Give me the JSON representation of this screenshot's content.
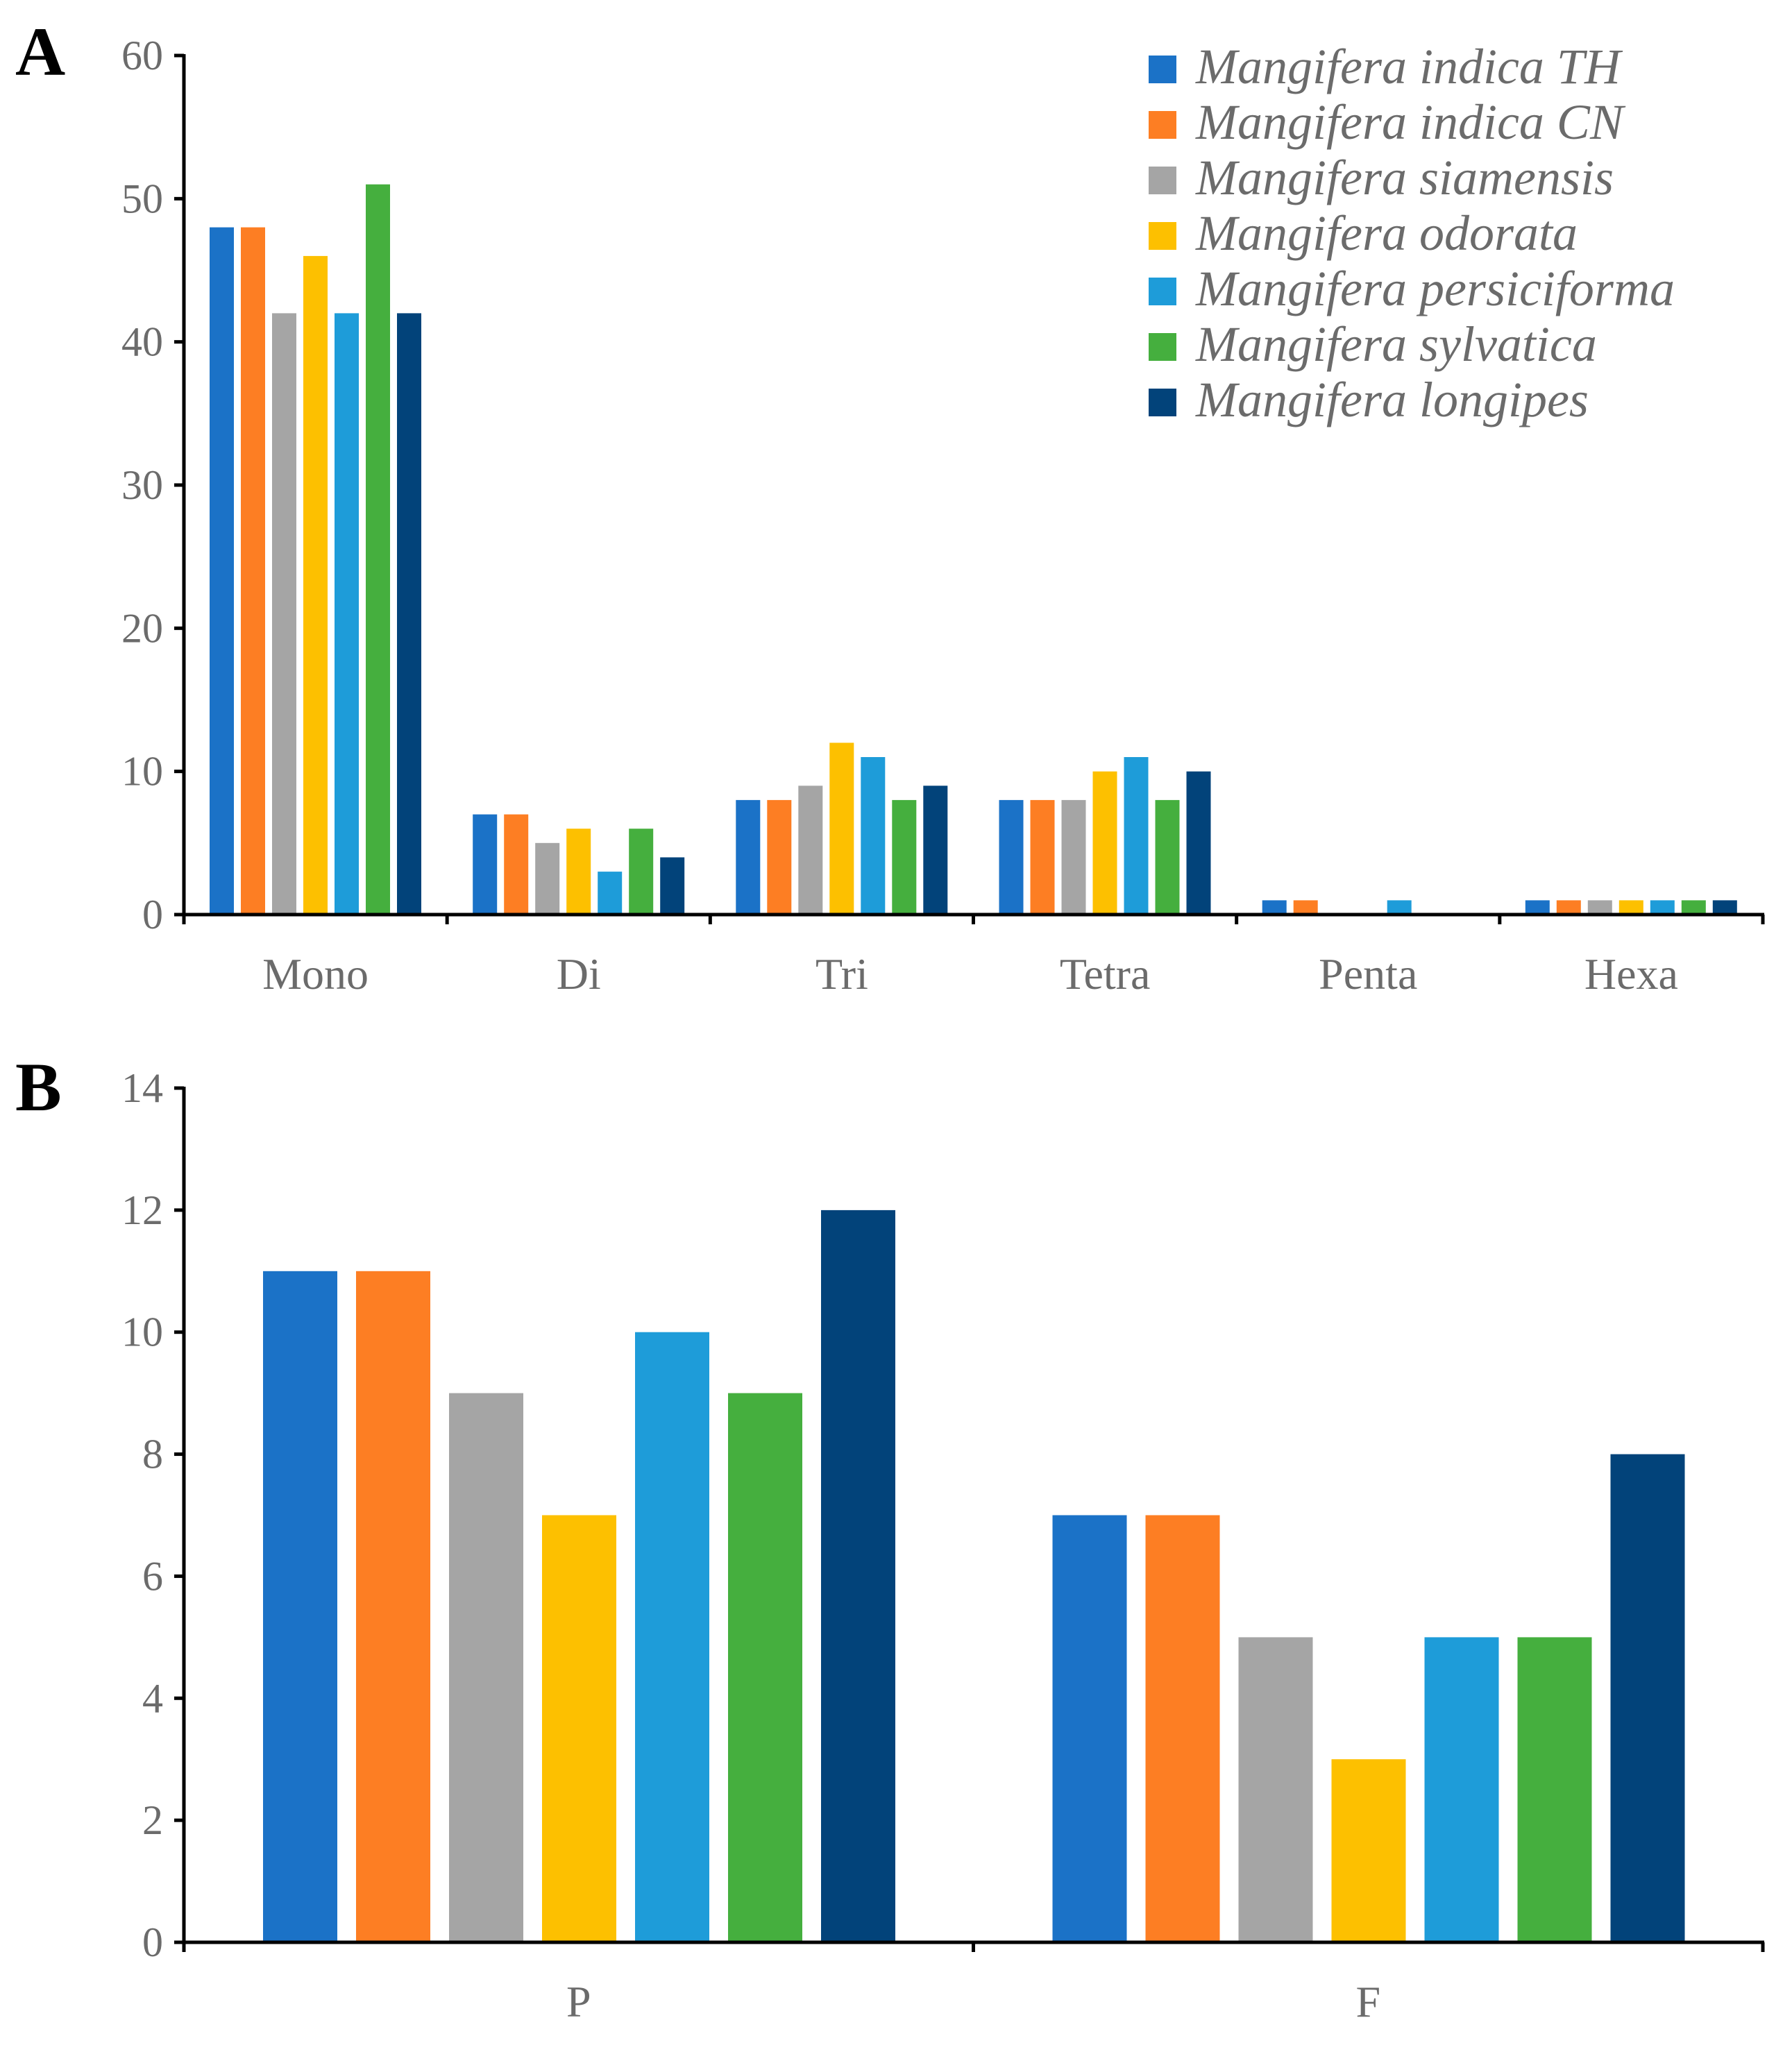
{
  "series_names": [
    "Mangifera indica TH",
    "Mangifera indica CN",
    "Mangifera siamensis",
    "Mangifera odorata",
    "Mangifera persiciforma",
    "Mangifera sylvatica",
    "Mangifera longipes"
  ],
  "series_colors": [
    "#1b72c7",
    "#fd7e23",
    "#a5a5a5",
    "#fdc000",
    "#1e9cd9",
    "#45af3e",
    "#02437a"
  ],
  "chart_data": [
    {
      "panel": "A",
      "type": "bar",
      "categories": [
        "Mono",
        "Di",
        "Tri",
        "Tetra",
        "Penta",
        "Hexa"
      ],
      "ylim": [
        0,
        60
      ],
      "yticks": [
        "0",
        "10",
        "20",
        "30",
        "40",
        "50",
        "60"
      ],
      "legend_position": "top-right",
      "series": [
        {
          "name": "Mangifera indica TH",
          "values": [
            48,
            7,
            8,
            8,
            1,
            1
          ]
        },
        {
          "name": "Mangifera indica CN",
          "values": [
            48,
            7,
            8,
            8,
            1,
            1
          ]
        },
        {
          "name": "Mangifera siamensis",
          "values": [
            42,
            5,
            9,
            8,
            0,
            1
          ]
        },
        {
          "name": "Mangifera odorata",
          "values": [
            46,
            6,
            12,
            10,
            0,
            1
          ]
        },
        {
          "name": "Mangifera persiciforma",
          "values": [
            42,
            3,
            11,
            11,
            1,
            1
          ]
        },
        {
          "name": "Mangifera sylvatica",
          "values": [
            51,
            6,
            8,
            8,
            0,
            1
          ]
        },
        {
          "name": "Mangifera longipes",
          "values": [
            42,
            4,
            9,
            10,
            0,
            1
          ]
        }
      ]
    },
    {
      "panel": "B",
      "type": "bar",
      "categories": [
        "P",
        "F"
      ],
      "ylim": [
        0,
        14
      ],
      "yticks": [
        "0",
        "2",
        "4",
        "6",
        "8",
        "10",
        "12",
        "14"
      ],
      "series": [
        {
          "name": "Mangifera indica TH",
          "values": [
            11,
            7
          ]
        },
        {
          "name": "Mangifera indica CN",
          "values": [
            11,
            7
          ]
        },
        {
          "name": "Mangifera siamensis",
          "values": [
            9,
            5
          ]
        },
        {
          "name": "Mangifera odorata",
          "values": [
            7,
            3
          ]
        },
        {
          "name": "Mangifera persiciforma",
          "values": [
            10,
            5
          ]
        },
        {
          "name": "Mangifera sylvatica",
          "values": [
            9,
            5
          ]
        },
        {
          "name": "Mangifera longipes",
          "values": [
            12,
            8
          ]
        }
      ]
    }
  ]
}
